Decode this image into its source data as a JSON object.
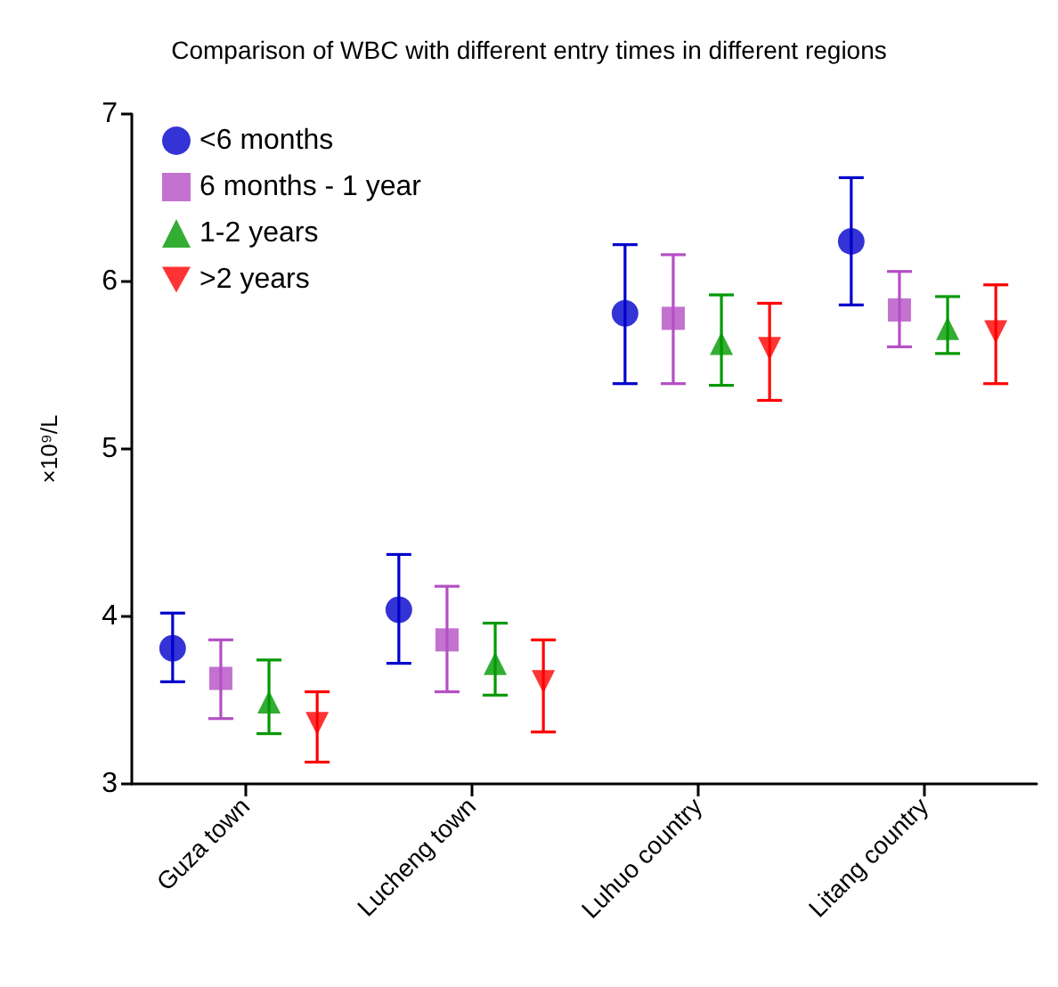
{
  "chart_data": {
    "type": "scatter",
    "title": "Comparison of WBC with different entry times in different regions",
    "ylabel": "×10⁹/L",
    "categories": [
      "Guza town",
      "Lucheng town",
      "Luhuo country",
      "Litang country"
    ],
    "ylim": [
      3,
      7
    ],
    "yticks": [
      3,
      4,
      5,
      6,
      7
    ],
    "grid": false,
    "legend": "top left",
    "series": [
      {
        "name": "<6 months",
        "color": "#0000cc",
        "marker": "circle",
        "values": [
          3.81,
          4.04,
          5.81,
          6.24
        ],
        "errors": [
          [
            3.61,
            4.02
          ],
          [
            3.72,
            4.37
          ],
          [
            5.39,
            6.22
          ],
          [
            5.86,
            6.62
          ]
        ]
      },
      {
        "name": "6 months - 1 year",
        "color": "#b44fc4",
        "marker": "square",
        "values": [
          3.63,
          3.86,
          5.78,
          5.83
        ],
        "errors": [
          [
            3.39,
            3.86
          ],
          [
            3.55,
            4.18
          ],
          [
            5.39,
            6.16
          ],
          [
            5.61,
            6.06
          ]
        ]
      },
      {
        "name": "1-2 years",
        "color": "#009900",
        "marker": "triangle",
        "values": [
          3.49,
          3.72,
          5.63,
          5.72
        ],
        "errors": [
          [
            3.3,
            3.74
          ],
          [
            3.53,
            3.96
          ],
          [
            5.38,
            5.92
          ],
          [
            5.57,
            5.91
          ]
        ]
      },
      {
        "name": ">2 years",
        "color": "#ff0000",
        "marker": "triangle-down",
        "values": [
          3.36,
          3.61,
          5.6,
          5.7
        ],
        "errors": [
          [
            3.13,
            3.55
          ],
          [
            3.31,
            3.86
          ],
          [
            5.29,
            5.87
          ],
          [
            5.39,
            5.98
          ]
        ]
      }
    ]
  }
}
